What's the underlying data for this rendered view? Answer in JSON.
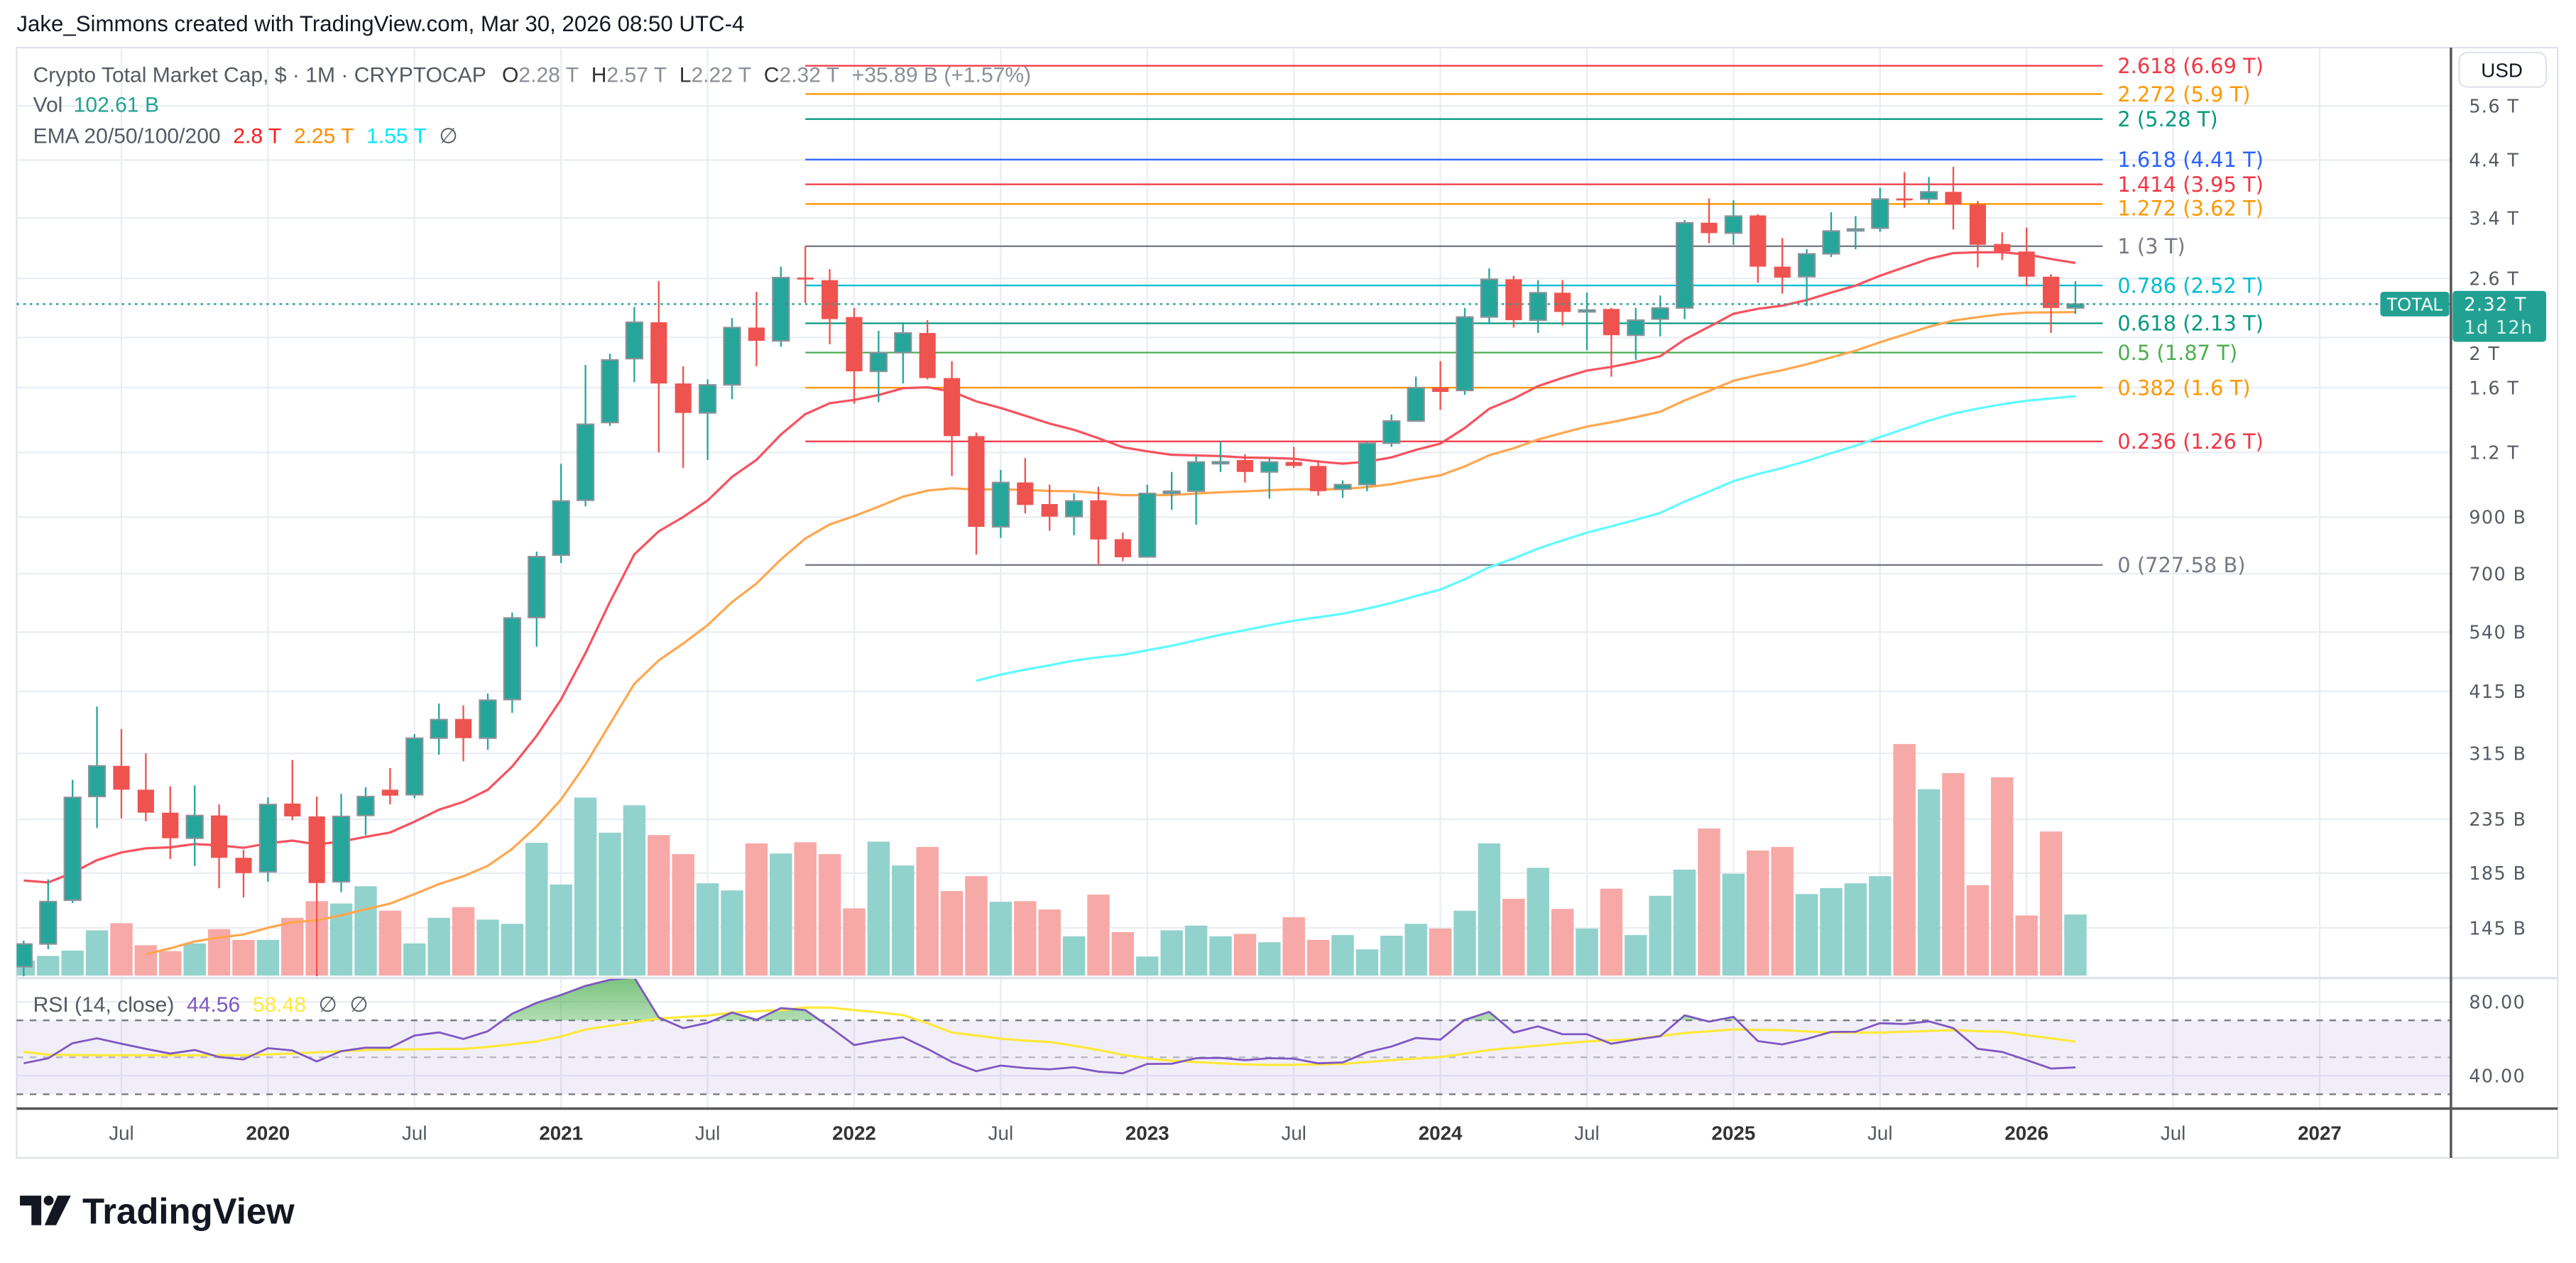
{
  "header": {
    "attribution": "Jake_Simmons created with TradingView.com, Mar 30, 2026 08:50 UTC-4"
  },
  "legend": {
    "title": "Crypto Total Market Cap, $ · 1M · CRYPTOCAP",
    "o_label": "O",
    "o": "2.28 T",
    "h_label": "H",
    "h": "2.57 T",
    "l_label": "L",
    "l": "2.22 T",
    "c_label": "C",
    "c": "2.32 T",
    "change": "+35.89 B (+1.57%)",
    "vol_label": "Vol",
    "vol": "102.61 B",
    "ema_label": "EMA 20/50/100/200",
    "ema_values": [
      "2.8 T",
      "2.25 T",
      "1.55 T"
    ],
    "ema_hidden": "∅",
    "rsi_label": "RSI (14, close)",
    "rsi_value": "44.56",
    "rsi_ma_value": "58.48",
    "rsi_hidden": [
      "∅",
      "∅"
    ]
  },
  "price_axis": {
    "currency": "USD",
    "ticks": [
      {
        "label": "5.6 T",
        "value": 5.6
      },
      {
        "label": "4.4 T",
        "value": 4.4
      },
      {
        "label": "3.4 T",
        "value": 3.4
      },
      {
        "label": "2.6 T",
        "value": 2.6
      },
      {
        "label": "2 T",
        "value": 2.0
      },
      {
        "label": "1.6 T",
        "value": 1.6
      },
      {
        "label": "1.2 T",
        "value": 1.2
      },
      {
        "label": "900 B",
        "value": 0.9
      },
      {
        "label": "700 B",
        "value": 0.7
      },
      {
        "label": "540 B",
        "value": 0.54
      },
      {
        "label": "415 B",
        "value": 0.415
      },
      {
        "label": "315 B",
        "value": 0.315
      },
      {
        "label": "235 B",
        "value": 0.235
      },
      {
        "label": "185 B",
        "value": 0.185
      },
      {
        "label": "145 B",
        "value": 0.145
      }
    ]
  },
  "rsi_axis": {
    "ticks": [
      {
        "label": "80.00",
        "value": 80
      },
      {
        "label": "40.00",
        "value": 40
      }
    ]
  },
  "current": {
    "symbol": "TOTAL",
    "price": "2.32 T",
    "price_value": 2.32,
    "countdown": "1d 12h"
  },
  "time_axis": {
    "ticks": [
      {
        "label": "Jul",
        "date": "2019-07",
        "bold": false
      },
      {
        "label": "2020",
        "date": "2020-01",
        "bold": true
      },
      {
        "label": "Jul",
        "date": "2020-07",
        "bold": false
      },
      {
        "label": "2021",
        "date": "2021-01",
        "bold": true
      },
      {
        "label": "Jul",
        "date": "2021-07",
        "bold": false
      },
      {
        "label": "2022",
        "date": "2022-01",
        "bold": true
      },
      {
        "label": "Jul",
        "date": "2022-07",
        "bold": false
      },
      {
        "label": "2023",
        "date": "2023-01",
        "bold": true
      },
      {
        "label": "Jul",
        "date": "2023-07",
        "bold": false
      },
      {
        "label": "2024",
        "date": "2024-01",
        "bold": true
      },
      {
        "label": "Jul",
        "date": "2024-07",
        "bold": false
      },
      {
        "label": "2025",
        "date": "2025-01",
        "bold": true
      },
      {
        "label": "Jul",
        "date": "2025-07",
        "bold": false
      },
      {
        "label": "2026",
        "date": "2026-01",
        "bold": true
      },
      {
        "label": "Jul",
        "date": "2026-07",
        "bold": false
      },
      {
        "label": "2027",
        "date": "2027-01",
        "bold": true
      }
    ]
  },
  "logo": {
    "text": "TradingView"
  },
  "colors": {
    "up": "#26a69a",
    "down": "#ef5350",
    "up_volume": "#92d2cc",
    "down_volume": "#f7a9a7",
    "ema20": "#f7525f",
    "ema50": "#ffa74f",
    "ema100": "#5ffbff",
    "ema20_legend": "#ff1a1a",
    "ema50_legend": "#ff8c00",
    "ema100_legend": "#00e5ff",
    "rsi": "#7e57c2",
    "rsi_ma": "#fde93b",
    "current": "#22a192",
    "grid": "#e9eef3"
  },
  "chart_data": {
    "type": "candlestick",
    "title": "Crypto Total Market Cap, $ · 1M · CRYPTOCAP",
    "interval": "1M",
    "y_scale": "log",
    "y_unit": "T (USD)",
    "grid": true,
    "candle_fields": [
      "date",
      "open_T",
      "high_T",
      "low_T",
      "close_T",
      "volume_B"
    ],
    "candles": [
      [
        "2019-03",
        0.122,
        0.137,
        0.117,
        0.135,
        25
      ],
      [
        "2019-04",
        0.135,
        0.18,
        0.132,
        0.163,
        33
      ],
      [
        "2019-05",
        0.164,
        0.28,
        0.162,
        0.259,
        42
      ],
      [
        "2019-06",
        0.26,
        0.388,
        0.226,
        0.298,
        76
      ],
      [
        "2019-07",
        0.298,
        0.351,
        0.236,
        0.268,
        88
      ],
      [
        "2019-08",
        0.268,
        0.315,
        0.233,
        0.242,
        51
      ],
      [
        "2019-09",
        0.242,
        0.272,
        0.197,
        0.216,
        41
      ],
      [
        "2019-10",
        0.216,
        0.273,
        0.191,
        0.239,
        54
      ],
      [
        "2019-11",
        0.239,
        0.251,
        0.173,
        0.198,
        78
      ],
      [
        "2019-12",
        0.198,
        0.205,
        0.166,
        0.185,
        60
      ],
      [
        "2020-01",
        0.186,
        0.259,
        0.178,
        0.251,
        60
      ],
      [
        "2020-02",
        0.252,
        0.306,
        0.234,
        0.238,
        97
      ],
      [
        "2020-03",
        0.238,
        0.26,
        0.117,
        0.177,
        125
      ],
      [
        "2020-04",
        0.178,
        0.263,
        0.17,
        0.238,
        121
      ],
      [
        "2020-05",
        0.239,
        0.271,
        0.219,
        0.26,
        150
      ],
      [
        "2020-06",
        0.268,
        0.295,
        0.251,
        0.261,
        109
      ],
      [
        "2020-07",
        0.262,
        0.343,
        0.258,
        0.337,
        54
      ],
      [
        "2020-08",
        0.337,
        0.393,
        0.313,
        0.366,
        97
      ],
      [
        "2020-09",
        0.367,
        0.39,
        0.304,
        0.337,
        115
      ],
      [
        "2020-10",
        0.337,
        0.411,
        0.32,
        0.399,
        94
      ],
      [
        "2020-11",
        0.4,
        0.589,
        0.377,
        0.575,
        87
      ],
      [
        "2020-12",
        0.576,
        0.772,
        0.506,
        0.755,
        223
      ],
      [
        "2021-01",
        0.76,
        1.14,
        0.734,
        0.967,
        153
      ],
      [
        "2021-02",
        0.97,
        1.77,
        0.944,
        1.36,
        299
      ],
      [
        "2021-03",
        1.37,
        1.86,
        1.35,
        1.81,
        240
      ],
      [
        "2021-04",
        1.82,
        2.29,
        1.64,
        2.14,
        286
      ],
      [
        "2021-05",
        2.14,
        2.57,
        1.2,
        1.63,
        236
      ],
      [
        "2021-06",
        1.63,
        1.76,
        1.12,
        1.43,
        204
      ],
      [
        "2021-07",
        1.43,
        1.66,
        1.16,
        1.62,
        155
      ],
      [
        "2021-08",
        1.62,
        2.18,
        1.52,
        2.09,
        143
      ],
      [
        "2021-09",
        2.09,
        2.45,
        1.76,
        1.97,
        222
      ],
      [
        "2021-10",
        1.97,
        2.74,
        1.92,
        2.61,
        205
      ],
      [
        "2021-11",
        2.61,
        3.0,
        2.33,
        2.59,
        224
      ],
      [
        "2021-12",
        2.58,
        2.71,
        1.94,
        2.17,
        204
      ],
      [
        "2022-01",
        2.19,
        2.28,
        1.49,
        1.72,
        113
      ],
      [
        "2022-02",
        1.72,
        2.06,
        1.5,
        1.87,
        225
      ],
      [
        "2022-03",
        1.87,
        2.14,
        1.63,
        2.04,
        185
      ],
      [
        "2022-04",
        2.04,
        2.16,
        1.66,
        1.67,
        216
      ],
      [
        "2022-05",
        1.67,
        1.8,
        1.08,
        1.29,
        142
      ],
      [
        "2022-06",
        1.29,
        1.31,
        0.762,
        0.862,
        167
      ],
      [
        "2022-07",
        0.862,
        1.11,
        0.82,
        1.05,
        124
      ],
      [
        "2022-08",
        1.05,
        1.17,
        0.915,
        0.95,
        125
      ],
      [
        "2022-09",
        0.954,
        1.04,
        0.847,
        0.902,
        111
      ],
      [
        "2022-10",
        0.902,
        1.0,
        0.83,
        0.967,
        66
      ],
      [
        "2022-11",
        0.97,
        1.03,
        0.728,
        0.815,
        136
      ],
      [
        "2022-12",
        0.816,
        0.84,
        0.74,
        0.753,
        73
      ],
      [
        "2023-01",
        0.754,
        1.04,
        0.752,
        1.0,
        32
      ],
      [
        "2023-02",
        1.0,
        1.1,
        0.93,
        1.01,
        76
      ],
      [
        "2023-03",
        1.01,
        1.18,
        0.87,
        1.15,
        84
      ],
      [
        "2023-04",
        1.15,
        1.26,
        1.1,
        1.151,
        66
      ],
      [
        "2023-05",
        1.16,
        1.19,
        1.05,
        1.1,
        70
      ],
      [
        "2023-06",
        1.1,
        1.17,
        0.977,
        1.15,
        56
      ],
      [
        "2023-07",
        1.15,
        1.23,
        1.12,
        1.13,
        98
      ],
      [
        "2023-08",
        1.13,
        1.16,
        0.99,
        1.01,
        60
      ],
      [
        "2023-09",
        1.02,
        1.06,
        0.98,
        1.04,
        68
      ],
      [
        "2023-10",
        1.04,
        1.26,
        1.01,
        1.25,
        44
      ],
      [
        "2023-11",
        1.25,
        1.42,
        1.23,
        1.38,
        67
      ],
      [
        "2023-12",
        1.38,
        1.68,
        1.38,
        1.6,
        87
      ],
      [
        "2024-01",
        1.6,
        1.8,
        1.45,
        1.57,
        79
      ],
      [
        "2024-02",
        1.58,
        2.28,
        1.55,
        2.19,
        109
      ],
      [
        "2024-03",
        2.19,
        2.72,
        2.12,
        2.59,
        222
      ],
      [
        "2024-04",
        2.59,
        2.63,
        2.09,
        2.16,
        129
      ],
      [
        "2024-05",
        2.16,
        2.58,
        2.04,
        2.44,
        181
      ],
      [
        "2024-06",
        2.44,
        2.58,
        2.11,
        2.24,
        112
      ],
      [
        "2024-07",
        2.25,
        2.44,
        1.89,
        2.26,
        79
      ],
      [
        "2024-08",
        2.27,
        2.28,
        1.68,
        2.02,
        146
      ],
      [
        "2024-09",
        2.02,
        2.28,
        1.81,
        2.16,
        68
      ],
      [
        "2024-10",
        2.17,
        2.41,
        2.01,
        2.28,
        134
      ],
      [
        "2024-11",
        2.28,
        3.37,
        2.17,
        3.33,
        178
      ],
      [
        "2024-12",
        3.33,
        3.71,
        3.04,
        3.18,
        247
      ],
      [
        "2025-01",
        3.18,
        3.68,
        3.02,
        3.43,
        171
      ],
      [
        "2025-02",
        3.44,
        3.46,
        2.55,
        2.74,
        210
      ],
      [
        "2025-03",
        2.74,
        3.11,
        2.43,
        2.61,
        216
      ],
      [
        "2025-04",
        2.62,
        2.96,
        2.3,
        2.9,
        137
      ],
      [
        "2025-05",
        2.9,
        3.49,
        2.86,
        3.21,
        147
      ],
      [
        "2025-06",
        3.22,
        3.43,
        2.96,
        3.24,
        155
      ],
      [
        "2025-07",
        3.25,
        3.89,
        3.2,
        3.7,
        167
      ],
      [
        "2025-08",
        3.71,
        4.17,
        3.56,
        3.7,
        389
      ],
      [
        "2025-09",
        3.7,
        4.08,
        3.63,
        3.82,
        313
      ],
      [
        "2025-10",
        3.82,
        4.27,
        3.23,
        3.61,
        340
      ],
      [
        "2025-11",
        3.61,
        3.67,
        2.73,
        3.02,
        152
      ],
      [
        "2025-12",
        3.03,
        3.19,
        2.82,
        2.93,
        333
      ],
      [
        "2026-01",
        2.93,
        3.26,
        2.51,
        2.62,
        101
      ],
      [
        "2026-02",
        2.62,
        2.65,
        2.04,
        2.28,
        242
      ],
      [
        "2026-03",
        2.28,
        2.57,
        2.22,
        2.32,
        102.61
      ]
    ],
    "ema": [
      {
        "length": 20,
        "first_date": "2019-03",
        "first_value": 0.179,
        "color": "#f7525f"
      },
      {
        "length": 50,
        "first_date": "2019-08",
        "first_value": 0.129,
        "color": "#ffa74f"
      },
      {
        "length": 100,
        "first_date": "2022-06",
        "first_value": 0.435,
        "color": "#5ffbff"
      }
    ],
    "fib_levels": {
      "from_date": "2021-11",
      "to_date": "2026-04",
      "levels": [
        {
          "ratio": "2.618",
          "label": "2.618 (6.69 T)",
          "value": 6.69,
          "color": "#f23645"
        },
        {
          "ratio": "2.272",
          "label": "2.272 (5.9 T)",
          "value": 5.9,
          "color": "#ff9800"
        },
        {
          "ratio": "2",
          "label": "2 (5.28 T)",
          "value": 5.28,
          "color": "#089981"
        },
        {
          "ratio": "1.618",
          "label": "1.618 (4.41 T)",
          "value": 4.41,
          "color": "#2962ff"
        },
        {
          "ratio": "1.414",
          "label": "1.414 (3.95 T)",
          "value": 3.95,
          "color": "#f23645"
        },
        {
          "ratio": "1.272",
          "label": "1.272 (3.62 T)",
          "value": 3.62,
          "color": "#ff9800"
        },
        {
          "ratio": "1",
          "label": "1 (3 T)",
          "value": 3.0,
          "color": "#787b86"
        },
        {
          "ratio": "0.786",
          "label": "0.786 (2.52 T)",
          "value": 2.52,
          "color": "#00bcd4"
        },
        {
          "ratio": "0.618",
          "label": "0.618 (2.13 T)",
          "value": 2.13,
          "color": "#089981"
        },
        {
          "ratio": "0.5",
          "label": "0.5 (1.87 T)",
          "value": 1.87,
          "color": "#4caf50"
        },
        {
          "ratio": "0.382",
          "label": "0.382 (1.6 T)",
          "value": 1.6,
          "color": "#ff9800"
        },
        {
          "ratio": "0.236",
          "label": "0.236 (1.26 T)",
          "value": 1.26,
          "color": "#f23645"
        },
        {
          "ratio": "0",
          "label": "0 (727.58 B)",
          "value": 0.72758,
          "color": "#787b86"
        }
      ]
    },
    "rsi": {
      "length": 14,
      "source": "close",
      "bands": [
        70,
        50,
        30
      ],
      "overbought_fill": true,
      "values": [
        46.8,
        49.4,
        57.6,
        60.3,
        57.3,
        54.6,
        52.0,
        54.0,
        50.1,
        48.8,
        54.9,
        53.7,
        47.7,
        53.3,
        55.2,
        55.2,
        61.8,
        63.5,
        59.9,
        64.1,
        73.6,
        79.5,
        83.7,
        88.6,
        91.9,
        93.2,
        71.6,
        65.8,
        68.6,
        74.2,
        70.3,
        76.6,
        75.6,
        66.4,
        56.6,
        59.0,
        60.9,
        54.6,
        47.5,
        42.5,
        45.5,
        44.2,
        43.5,
        44.6,
        42.2,
        41.3,
        46.4,
        46.5,
        49.5,
        49.7,
        48.4,
        49.5,
        49.2,
        46.8,
        47.2,
        52.7,
        55.8,
        60.4,
        59.6,
        70.3,
        74.6,
        63.4,
        66.8,
        62.5,
        62.5,
        57.3,
        59.6,
        61.4,
        72.7,
        69.3,
        71.9,
        58.8,
        57.0,
        59.9,
        63.7,
        63.8,
        68.4,
        68.0,
        69.4,
        65.8,
        54.6,
        52.9,
        48.5,
        43.9,
        44.56
      ],
      "ma_values": [
        53.0,
        51.4,
        51.2,
        51.1,
        51.1,
        51.1,
        51.1,
        51.1,
        51.1,
        51.1,
        51.6,
        52.1,
        52.7,
        53.3,
        54.0,
        54.2,
        54.3,
        54.5,
        54.6,
        55.6,
        57.1,
        58.6,
        61.2,
        65.1,
        67.0,
        69.0,
        71.0,
        71.8,
        72.5,
        74.2,
        74.9,
        75.6,
        76.9,
        76.9,
        75.6,
        74.3,
        72.9,
        68.4,
        63.4,
        61.8,
        60.1,
        59.0,
        58.3,
        56.3,
        54.0,
        51.4,
        49.4,
        48.1,
        47.5,
        46.8,
        46.1,
        45.9,
        46.0,
        46.1,
        46.4,
        47.5,
        48.4,
        49.3,
        50.1,
        52.0,
        54.0,
        55.2,
        56.3,
        57.5,
        58.6,
        59.2,
        59.9,
        61.5,
        63.1,
        64.1,
        65.1,
        64.9,
        64.7,
        64.0,
        63.4,
        63.4,
        63.4,
        63.8,
        64.3,
        64.7,
        64.2,
        63.8,
        62.0,
        60.3,
        58.48
      ]
    }
  }
}
